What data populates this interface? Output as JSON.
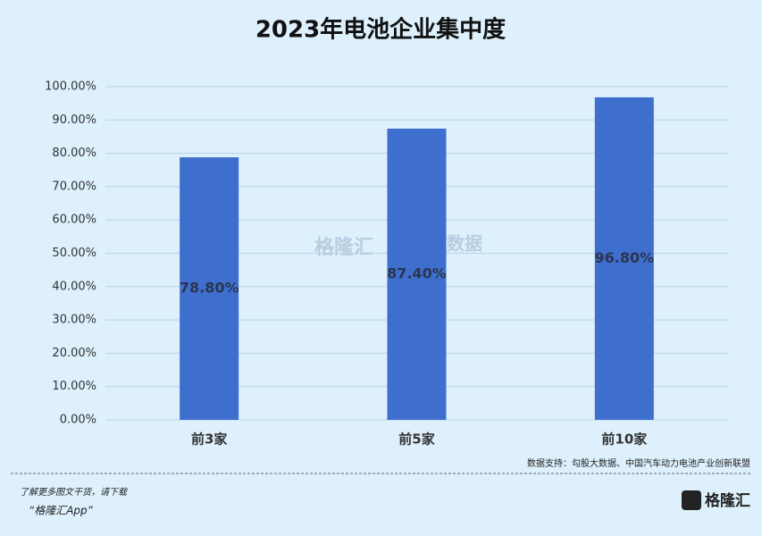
{
  "chart_data": {
    "type": "bar",
    "title": "2023年电池企业集中度",
    "categories": [
      "前3家",
      "前5家",
      "前10家"
    ],
    "values": [
      78.8,
      87.4,
      96.8
    ],
    "value_labels": [
      "78.80%",
      "87.40%",
      "96.80%"
    ],
    "color": "#3f6fce",
    "ylim": [
      0,
      100
    ],
    "yticks": [
      {
        "value": 0,
        "label": "0.00%"
      },
      {
        "value": 10,
        "label": "10.00%"
      },
      {
        "value": 20,
        "label": "20.00%"
      },
      {
        "value": 30,
        "label": "30.00%"
      },
      {
        "value": 40,
        "label": "40.00%"
      },
      {
        "value": 50,
        "label": "50.00%"
      },
      {
        "value": 60,
        "label": "60.00%"
      },
      {
        "value": 70,
        "label": "70.00%"
      },
      {
        "value": 80,
        "label": "80.00%"
      },
      {
        "value": 90,
        "label": "90.00%"
      },
      {
        "value": 100,
        "label": "100.00%"
      }
    ],
    "grid": true,
    "source": "数据支持：勾股大数据、中国汽车动力电池产业创新联盟",
    "watermark": [
      "格隆汇",
      "勾股大数据"
    ]
  },
  "footer": {
    "line1": "了解更多图文干货，请下载",
    "line2": "“格隆汇App”",
    "logo": "格隆汇"
  }
}
